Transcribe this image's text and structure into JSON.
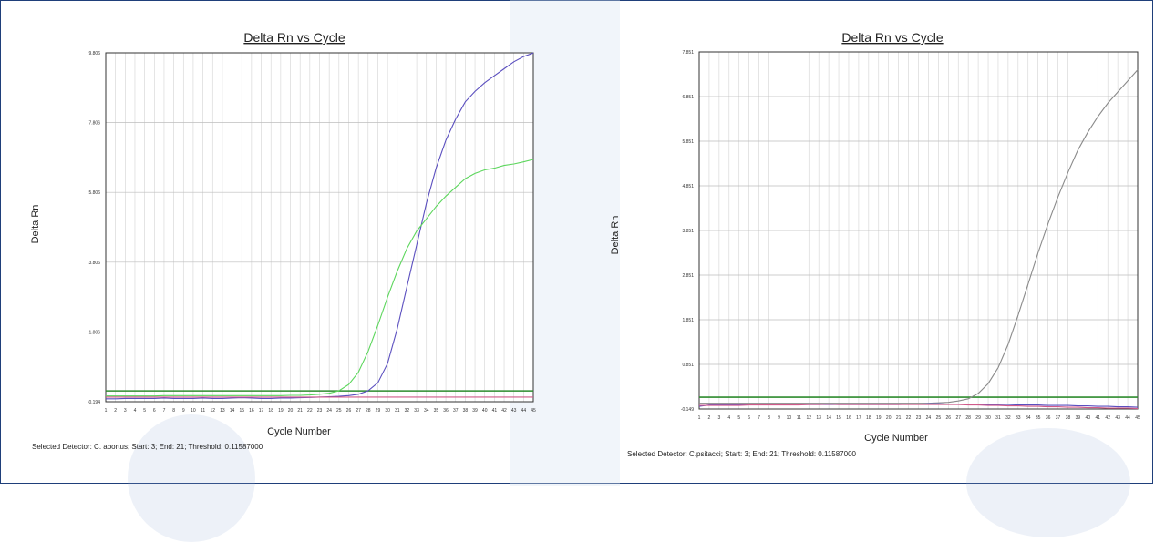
{
  "charts": [
    {
      "footer": "Selected Detector: C. abortus; Start: 3; End: 21; Threshold: 0.11587000",
      "chart_data": {
        "type": "line",
        "title": "Delta Rn vs Cycle",
        "xlabel": "Cycle Number",
        "ylabel": "Delta Rn",
        "x": [
          1,
          2,
          3,
          4,
          5,
          6,
          7,
          8,
          9,
          10,
          11,
          12,
          13,
          14,
          15,
          16,
          17,
          18,
          19,
          20,
          21,
          22,
          23,
          24,
          25,
          26,
          27,
          28,
          29,
          30,
          31,
          32,
          33,
          34,
          35,
          36,
          37,
          38,
          39,
          40,
          41,
          42,
          43,
          44,
          45
        ],
        "xlim": [
          1,
          45
        ],
        "y_ticks": [
          "-0.194",
          "1.806",
          "3.806",
          "5.806",
          "7.806",
          "9.806"
        ],
        "ylim": [
          -0.194,
          9.806
        ],
        "grid": true,
        "threshold": {
          "value": 0.116,
          "color": "#2e8b2e"
        },
        "series": [
          {
            "color": "#5b4fbf",
            "values": [
              -0.11,
              -0.11,
              -0.1,
              -0.1,
              -0.1,
              -0.1,
              -0.09,
              -0.1,
              -0.1,
              -0.1,
              -0.09,
              -0.1,
              -0.1,
              -0.09,
              -0.08,
              -0.09,
              -0.1,
              -0.1,
              -0.09,
              -0.09,
              -0.08,
              -0.07,
              -0.06,
              -0.05,
              -0.04,
              -0.02,
              0.02,
              0.12,
              0.35,
              0.9,
              1.9,
              3.1,
              4.3,
              5.5,
              6.5,
              7.3,
              7.9,
              8.4,
              8.7,
              8.95,
              9.15,
              9.35,
              9.55,
              9.7,
              9.8
            ]
          },
          {
            "color": "#5cd65c",
            "values": [
              -0.03,
              -0.03,
              -0.03,
              -0.03,
              -0.03,
              -0.03,
              -0.02,
              -0.02,
              -0.02,
              -0.02,
              -0.02,
              -0.02,
              -0.02,
              -0.02,
              -0.02,
              -0.02,
              -0.02,
              -0.02,
              -0.02,
              -0.01,
              -0.01,
              0,
              0.02,
              0.05,
              0.12,
              0.3,
              0.65,
              1.25,
              2.0,
              2.8,
              3.55,
              4.2,
              4.7,
              5.05,
              5.4,
              5.7,
              5.95,
              6.2,
              6.35,
              6.45,
              6.5,
              6.58,
              6.62,
              6.68,
              6.75
            ]
          },
          {
            "color": "#d05a8a",
            "values": [
              -0.06,
              -0.06,
              -0.06,
              -0.06,
              -0.06,
              -0.06,
              -0.06,
              -0.06,
              -0.06,
              -0.06,
              -0.06,
              -0.06,
              -0.06,
              -0.06,
              -0.06,
              -0.06,
              -0.06,
              -0.06,
              -0.06,
              -0.06,
              -0.06,
              -0.06,
              -0.06,
              -0.06,
              -0.06,
              -0.06,
              -0.06,
              -0.06,
              -0.06,
              -0.06,
              -0.06,
              -0.06,
              -0.06,
              -0.06,
              -0.06,
              -0.06,
              -0.06,
              -0.06,
              -0.06,
              -0.06,
              -0.06,
              -0.06,
              -0.06,
              -0.06,
              -0.06
            ]
          }
        ]
      }
    },
    {
      "footer": "Selected Detector: C.psitacci; Start: 3; End: 21; Threshold: 0.11587000",
      "chart_data": {
        "type": "line",
        "title": "Delta Rn vs Cycle",
        "xlabel": "Cycle Number",
        "ylabel": "Delta Rn",
        "x": [
          1,
          2,
          3,
          4,
          5,
          6,
          7,
          8,
          9,
          10,
          11,
          12,
          13,
          14,
          15,
          16,
          17,
          18,
          19,
          20,
          21,
          22,
          23,
          24,
          25,
          26,
          27,
          28,
          29,
          30,
          31,
          32,
          33,
          34,
          35,
          36,
          37,
          38,
          39,
          40,
          41,
          42,
          43,
          44,
          45
        ],
        "xlim": [
          1,
          45
        ],
        "y_ticks": [
          "-0.149",
          "0.851",
          "1.851",
          "2.851",
          "3.851",
          "4.851",
          "5.851",
          "6.851",
          "7.851"
        ],
        "ylim": [
          -0.149,
          7.851
        ],
        "grid": true,
        "threshold": {
          "value": 0.116,
          "color": "#2e8b2e"
        },
        "series": [
          {
            "color": "#8a8a8a",
            "values": [
              -0.02,
              -0.02,
              -0.02,
              -0.02,
              -0.02,
              -0.02,
              -0.02,
              -0.02,
              -0.02,
              -0.02,
              -0.02,
              -0.02,
              -0.02,
              -0.02,
              -0.02,
              -0.02,
              -0.02,
              -0.02,
              -0.02,
              -0.02,
              -0.02,
              -0.02,
              -0.02,
              -0.02,
              -0.01,
              0,
              0.03,
              0.08,
              0.2,
              0.42,
              0.78,
              1.3,
              1.95,
              2.65,
              3.35,
              4.0,
              4.6,
              5.15,
              5.65,
              6.05,
              6.4,
              6.7,
              6.95,
              7.2,
              7.45
            ]
          },
          {
            "color": "#5b4fbf",
            "values": [
              -0.09,
              -0.06,
              -0.06,
              -0.05,
              -0.05,
              -0.05,
              -0.05,
              -0.05,
              -0.05,
              -0.05,
              -0.05,
              -0.05,
              -0.05,
              -0.05,
              -0.05,
              -0.05,
              -0.05,
              -0.05,
              -0.05,
              -0.05,
              -0.05,
              -0.04,
              -0.04,
              -0.03,
              -0.03,
              -0.04,
              -0.04,
              -0.04,
              -0.05,
              -0.05,
              -0.05,
              -0.05,
              -0.06,
              -0.06,
              -0.06,
              -0.07,
              -0.07,
              -0.07,
              -0.08,
              -0.08,
              -0.09,
              -0.09,
              -0.1,
              -0.1,
              -0.11
            ]
          },
          {
            "color": "#d05a8a",
            "values": [
              -0.07,
              -0.07,
              -0.07,
              -0.07,
              -0.07,
              -0.06,
              -0.06,
              -0.06,
              -0.06,
              -0.06,
              -0.06,
              -0.05,
              -0.05,
              -0.04,
              -0.05,
              -0.05,
              -0.05,
              -0.05,
              -0.05,
              -0.05,
              -0.05,
              -0.05,
              -0.05,
              -0.05,
              -0.05,
              -0.05,
              -0.05,
              -0.06,
              -0.06,
              -0.07,
              -0.07,
              -0.08,
              -0.08,
              -0.09,
              -0.09,
              -0.1,
              -0.1,
              -0.11,
              -0.11,
              -0.12,
              -0.12,
              -0.13,
              -0.13,
              -0.13,
              -0.14
            ]
          }
        ]
      }
    }
  ]
}
